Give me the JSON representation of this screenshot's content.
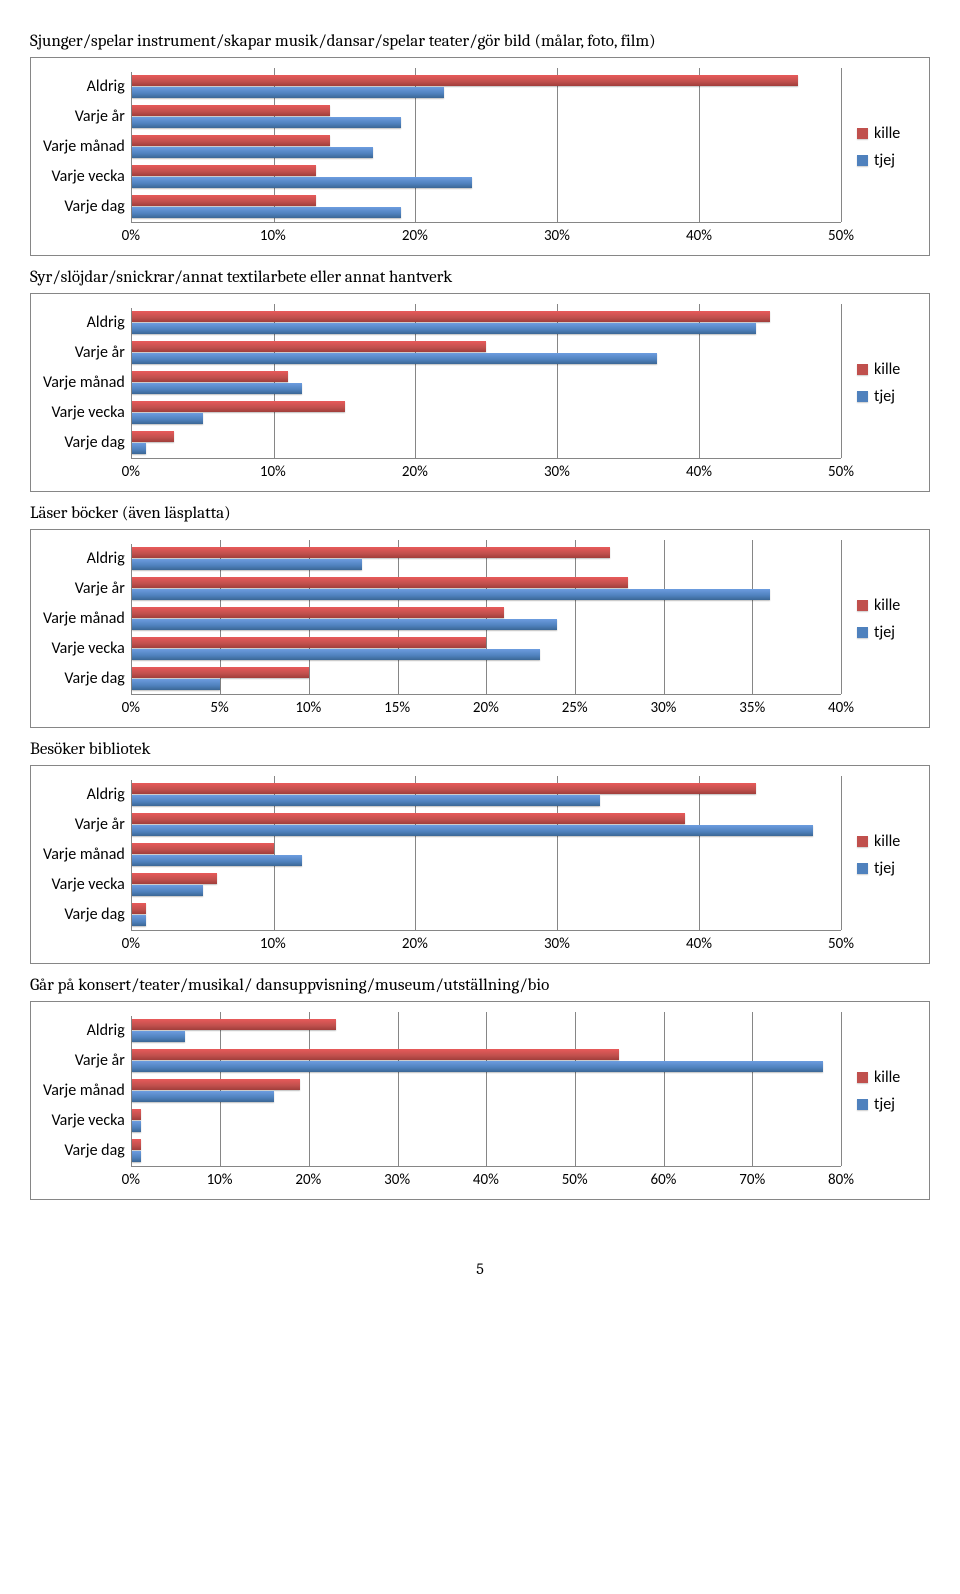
{
  "page_number": "5",
  "colors": {
    "kille": "#c0504d",
    "tjej": "#4f81bd",
    "grid": "#868686",
    "background": "#ffffff"
  },
  "legend": {
    "kille": "kille",
    "tjej": "tjej"
  },
  "charts": [
    {
      "title": "Sjunger/spelar instrument/skapar musik/dansar/spelar teater/gör bild (målar, foto, film)",
      "type": "bar",
      "xmax": 50,
      "xtick_step": 10,
      "categories": [
        "Aldrig",
        "Varje år",
        "Varje månad",
        "Varje vecka",
        "Varje dag"
      ],
      "kille": [
        47,
        14,
        14,
        13,
        13
      ],
      "tjej": [
        22,
        19,
        17,
        24,
        19
      ],
      "title_fontsize": 17,
      "label_fontsize": 16
    },
    {
      "title": "Syr/slöjdar/snickrar/annat textilarbete eller annat hantverk",
      "type": "bar",
      "xmax": 50,
      "xtick_step": 10,
      "categories": [
        "Aldrig",
        "Varje år",
        "Varje månad",
        "Varje vecka",
        "Varje dag"
      ],
      "kille": [
        45,
        25,
        11,
        15,
        3
      ],
      "tjej": [
        44,
        37,
        12,
        5,
        1
      ],
      "title_fontsize": 17,
      "label_fontsize": 16
    },
    {
      "title": "Läser böcker (även läsplatta)",
      "type": "bar",
      "xmax": 40,
      "xtick_step": 5,
      "categories": [
        "Aldrig",
        "Varje år",
        "Varje månad",
        "Varje vecka",
        "Varje dag"
      ],
      "kille": [
        27,
        28,
        21,
        20,
        10
      ],
      "tjej": [
        13,
        36,
        24,
        23,
        5
      ],
      "title_fontsize": 17,
      "label_fontsize": 16
    },
    {
      "title": "Besöker bibliotek",
      "type": "bar",
      "xmax": 50,
      "xtick_step": 10,
      "categories": [
        "Aldrig",
        "Varje år",
        "Varje månad",
        "Varje vecka",
        "Varje dag"
      ],
      "kille": [
        44,
        39,
        10,
        6,
        1
      ],
      "tjej": [
        33,
        48,
        12,
        5,
        1
      ],
      "title_fontsize": 17,
      "label_fontsize": 16
    },
    {
      "title": "Går på konsert/teater/musikal/ dansuppvisning/museum/utställning/bio",
      "type": "bar",
      "xmax": 80,
      "xtick_step": 10,
      "categories": [
        "Aldrig",
        "Varje år",
        "Varje månad",
        "Varje vecka",
        "Varje dag"
      ],
      "kille": [
        23,
        55,
        19,
        1,
        1
      ],
      "tjej": [
        6,
        78,
        16,
        1,
        1
      ],
      "title_fontsize": 17,
      "label_fontsize": 16
    }
  ]
}
